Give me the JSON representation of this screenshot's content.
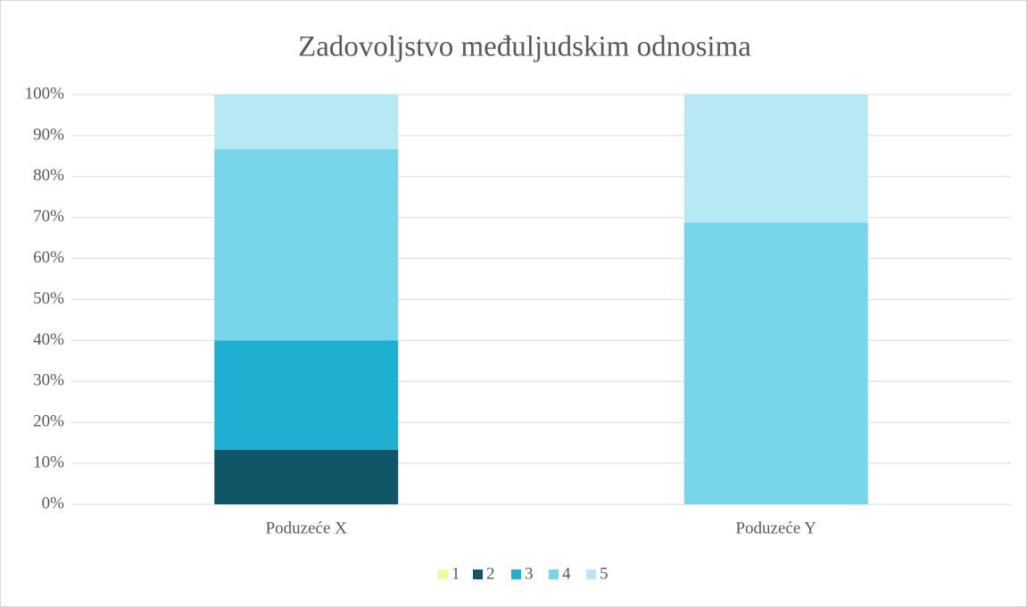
{
  "chart_data": {
    "type": "stacked_bar",
    "title": "Zadovoljstvo međuljudskim odnosima",
    "categories": [
      "Poduzeće X",
      "Poduzeće Y"
    ],
    "series": [
      {
        "name": "1",
        "color": "#f7f79c",
        "values": [
          0,
          0
        ]
      },
      {
        "name": "2",
        "color": "#0f5767",
        "values": [
          13.3,
          0
        ]
      },
      {
        "name": "3",
        "color": "#1fafd0",
        "values": [
          26.7,
          0
        ]
      },
      {
        "name": "4",
        "color": "#78d6ea",
        "values": [
          46.7,
          68.8
        ]
      },
      {
        "name": "5",
        "color": "#b7e9f4",
        "values": [
          13.3,
          31.2
        ]
      }
    ],
    "ylim": [
      0,
      100
    ],
    "yticks": [
      {
        "value": 0,
        "label": "0%"
      },
      {
        "value": 10,
        "label": "10%"
      },
      {
        "value": 20,
        "label": "20%"
      },
      {
        "value": 30,
        "label": "30%"
      },
      {
        "value": 40,
        "label": "40%"
      },
      {
        "value": 50,
        "label": "50%"
      },
      {
        "value": 60,
        "label": "60%"
      },
      {
        "value": 70,
        "label": "70%"
      },
      {
        "value": 80,
        "label": "80%"
      },
      {
        "value": 90,
        "label": "90%"
      },
      {
        "value": 100,
        "label": "100%"
      }
    ],
    "grid": true,
    "legend": "bottom"
  }
}
